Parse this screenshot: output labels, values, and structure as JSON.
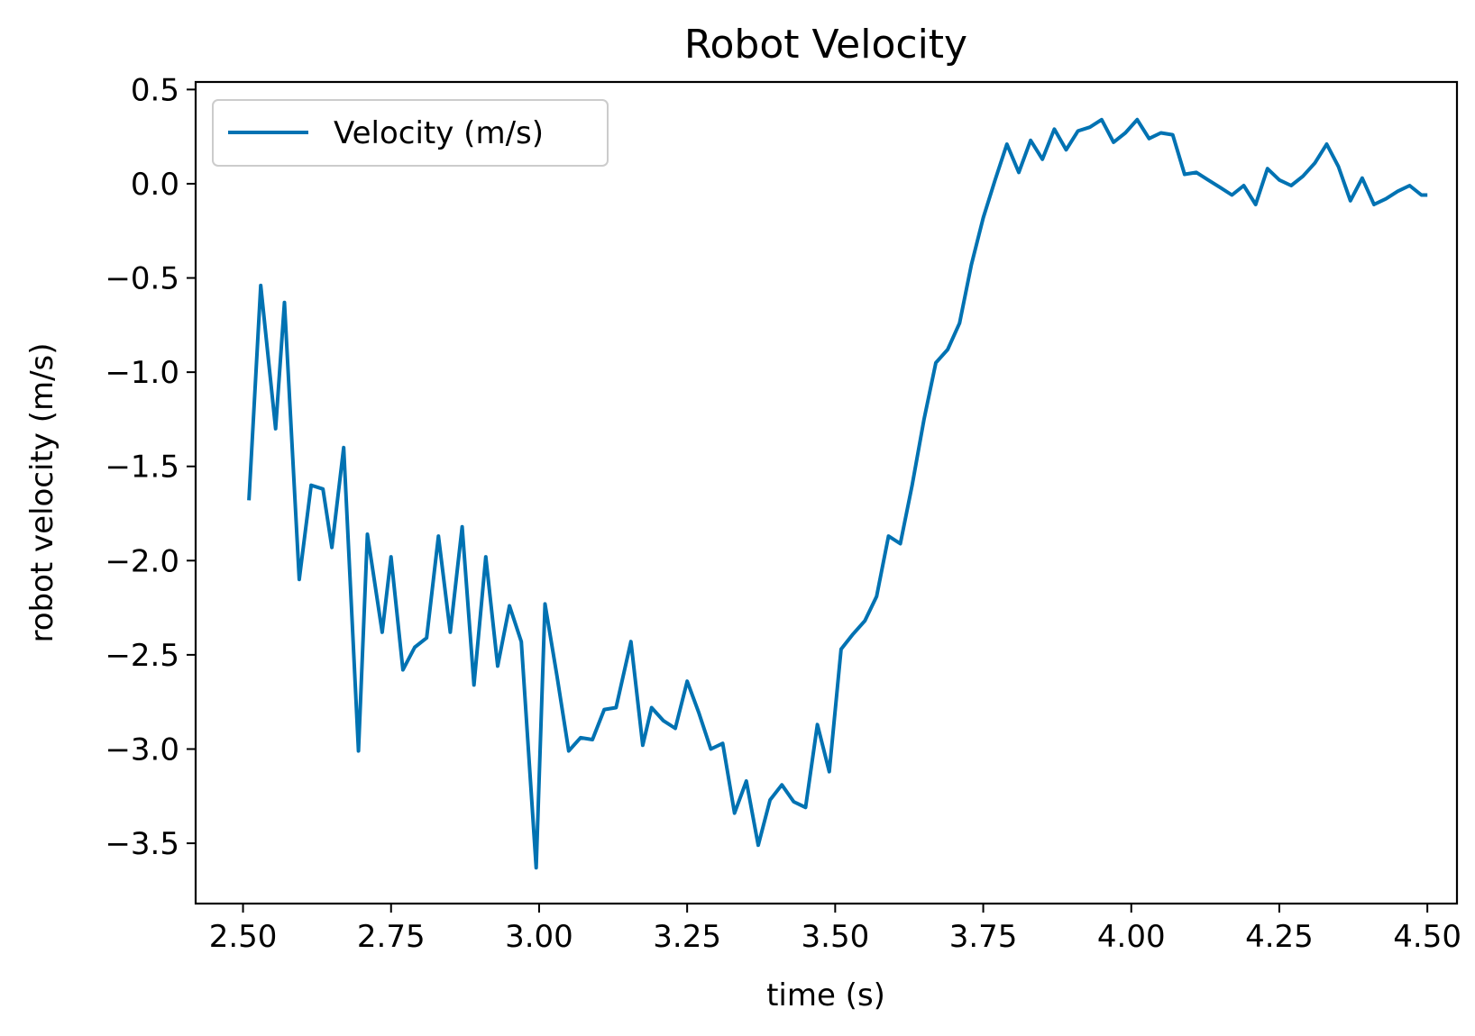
{
  "chart_data": {
    "type": "line",
    "title": "Robot Velocity",
    "xlabel": "time (s)",
    "ylabel": "robot velocity (m/s)",
    "xlim": [
      2.42,
      4.55
    ],
    "ylim": [
      -3.82,
      0.54
    ],
    "xticks": [
      2.5,
      2.75,
      3.0,
      3.25,
      3.5,
      3.75,
      4.0,
      4.25,
      4.5
    ],
    "xtick_labels": [
      "2.50",
      "2.75",
      "3.00",
      "3.25",
      "3.50",
      "3.75",
      "4.00",
      "4.25",
      "4.50"
    ],
    "yticks": [
      0.5,
      0.0,
      -0.5,
      -1.0,
      -1.5,
      -2.0,
      -2.5,
      -3.0,
      -3.5
    ],
    "ytick_labels": [
      "0.5",
      "0.0",
      "−0.5",
      "−1.0",
      "−1.5",
      "−2.0",
      "−2.5",
      "−3.0",
      "−3.5"
    ],
    "grid": false,
    "legend_position": "top-left",
    "series": [
      {
        "name": "Velocity (m/s)",
        "color": "#0072b2",
        "x": [
          2.51,
          2.53,
          2.555,
          2.57,
          2.595,
          2.615,
          2.635,
          2.65,
          2.67,
          2.695,
          2.71,
          2.735,
          2.75,
          2.77,
          2.79,
          2.81,
          2.83,
          2.85,
          2.87,
          2.89,
          2.91,
          2.93,
          2.95,
          2.97,
          2.995,
          3.01,
          3.03,
          3.05,
          3.07,
          3.09,
          3.11,
          3.13,
          3.155,
          3.175,
          3.19,
          3.21,
          3.23,
          3.25,
          3.27,
          3.29,
          3.31,
          3.33,
          3.35,
          3.37,
          3.39,
          3.41,
          3.43,
          3.45,
          3.47,
          3.49,
          3.51,
          3.53,
          3.55,
          3.57,
          3.59,
          3.61,
          3.63,
          3.65,
          3.67,
          3.69,
          3.71,
          3.73,
          3.75,
          3.77,
          3.79,
          3.81,
          3.83,
          3.85,
          3.87,
          3.89,
          3.91,
          3.93,
          3.95,
          3.97,
          3.99,
          4.01,
          4.03,
          4.05,
          4.07,
          4.09,
          4.11,
          4.13,
          4.15,
          4.17,
          4.19,
          4.21,
          4.23,
          4.25,
          4.27,
          4.29,
          4.31,
          4.33,
          4.35,
          4.37,
          4.39,
          4.41,
          4.43,
          4.45,
          4.47,
          4.49,
          4.5
        ],
        "y": [
          -1.68,
          -0.54,
          -1.3,
          -0.63,
          -2.1,
          -1.6,
          -1.62,
          -1.93,
          -1.4,
          -3.01,
          -1.86,
          -2.38,
          -1.98,
          -2.58,
          -2.46,
          -2.41,
          -1.87,
          -2.38,
          -1.82,
          -2.66,
          -1.98,
          -2.56,
          -2.24,
          -2.43,
          -3.63,
          -2.23,
          -2.61,
          -3.01,
          -2.94,
          -2.95,
          -2.79,
          -2.78,
          -2.43,
          -2.98,
          -2.78,
          -2.85,
          -2.89,
          -2.64,
          -2.81,
          -3.0,
          -2.97,
          -3.34,
          -3.17,
          -3.51,
          -3.27,
          -3.19,
          -3.28,
          -3.31,
          -2.87,
          -3.12,
          -2.47,
          -2.39,
          -2.32,
          -2.19,
          -1.87,
          -1.91,
          -1.6,
          -1.25,
          -0.95,
          -0.88,
          -0.74,
          -0.43,
          -0.18,
          0.02,
          0.21,
          0.06,
          0.23,
          0.13,
          0.29,
          0.18,
          0.28,
          0.3,
          0.34,
          0.22,
          0.27,
          0.34,
          0.24,
          0.27,
          0.26,
          0.05,
          0.06,
          0.02,
          -0.02,
          -0.06,
          -0.01,
          -0.11,
          0.08,
          0.02,
          -0.01,
          0.04,
          0.11,
          0.21,
          0.09,
          -0.09,
          0.03,
          -0.11,
          -0.08,
          -0.04,
          -0.01,
          -0.06,
          -0.06
        ]
      }
    ]
  }
}
